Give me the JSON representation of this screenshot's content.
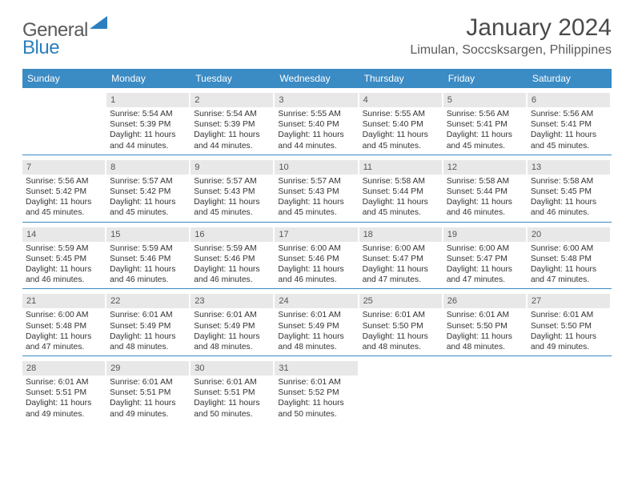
{
  "logo": {
    "part1": "General",
    "part2": "Blue"
  },
  "title": "January 2024",
  "location": "Limulan, Soccsksargen, Philippines",
  "weekdays": [
    "Sunday",
    "Monday",
    "Tuesday",
    "Wednesday",
    "Thursday",
    "Friday",
    "Saturday"
  ],
  "colors": {
    "header_bg": "#3b8bc4",
    "header_text": "#ffffff",
    "daynum_bg": "#e8e8e8",
    "body_text": "#333333",
    "logo_gray": "#5a5a5a",
    "logo_blue": "#2a7fbf"
  },
  "weeks": [
    [
      null,
      {
        "n": "1",
        "sr": "5:54 AM",
        "ss": "5:39 PM",
        "dl1": "11 hours",
        "dl2": "and 44 minutes."
      },
      {
        "n": "2",
        "sr": "5:54 AM",
        "ss": "5:39 PM",
        "dl1": "11 hours",
        "dl2": "and 44 minutes."
      },
      {
        "n": "3",
        "sr": "5:55 AM",
        "ss": "5:40 PM",
        "dl1": "11 hours",
        "dl2": "and 44 minutes."
      },
      {
        "n": "4",
        "sr": "5:55 AM",
        "ss": "5:40 PM",
        "dl1": "11 hours",
        "dl2": "and 45 minutes."
      },
      {
        "n": "5",
        "sr": "5:56 AM",
        "ss": "5:41 PM",
        "dl1": "11 hours",
        "dl2": "and 45 minutes."
      },
      {
        "n": "6",
        "sr": "5:56 AM",
        "ss": "5:41 PM",
        "dl1": "11 hours",
        "dl2": "and 45 minutes."
      }
    ],
    [
      {
        "n": "7",
        "sr": "5:56 AM",
        "ss": "5:42 PM",
        "dl1": "11 hours",
        "dl2": "and 45 minutes."
      },
      {
        "n": "8",
        "sr": "5:57 AM",
        "ss": "5:42 PM",
        "dl1": "11 hours",
        "dl2": "and 45 minutes."
      },
      {
        "n": "9",
        "sr": "5:57 AM",
        "ss": "5:43 PM",
        "dl1": "11 hours",
        "dl2": "and 45 minutes."
      },
      {
        "n": "10",
        "sr": "5:57 AM",
        "ss": "5:43 PM",
        "dl1": "11 hours",
        "dl2": "and 45 minutes."
      },
      {
        "n": "11",
        "sr": "5:58 AM",
        "ss": "5:44 PM",
        "dl1": "11 hours",
        "dl2": "and 45 minutes."
      },
      {
        "n": "12",
        "sr": "5:58 AM",
        "ss": "5:44 PM",
        "dl1": "11 hours",
        "dl2": "and 46 minutes."
      },
      {
        "n": "13",
        "sr": "5:58 AM",
        "ss": "5:45 PM",
        "dl1": "11 hours",
        "dl2": "and 46 minutes."
      }
    ],
    [
      {
        "n": "14",
        "sr": "5:59 AM",
        "ss": "5:45 PM",
        "dl1": "11 hours",
        "dl2": "and 46 minutes."
      },
      {
        "n": "15",
        "sr": "5:59 AM",
        "ss": "5:46 PM",
        "dl1": "11 hours",
        "dl2": "and 46 minutes."
      },
      {
        "n": "16",
        "sr": "5:59 AM",
        "ss": "5:46 PM",
        "dl1": "11 hours",
        "dl2": "and 46 minutes."
      },
      {
        "n": "17",
        "sr": "6:00 AM",
        "ss": "5:46 PM",
        "dl1": "11 hours",
        "dl2": "and 46 minutes."
      },
      {
        "n": "18",
        "sr": "6:00 AM",
        "ss": "5:47 PM",
        "dl1": "11 hours",
        "dl2": "and 47 minutes."
      },
      {
        "n": "19",
        "sr": "6:00 AM",
        "ss": "5:47 PM",
        "dl1": "11 hours",
        "dl2": "and 47 minutes."
      },
      {
        "n": "20",
        "sr": "6:00 AM",
        "ss": "5:48 PM",
        "dl1": "11 hours",
        "dl2": "and 47 minutes."
      }
    ],
    [
      {
        "n": "21",
        "sr": "6:00 AM",
        "ss": "5:48 PM",
        "dl1": "11 hours",
        "dl2": "and 47 minutes."
      },
      {
        "n": "22",
        "sr": "6:01 AM",
        "ss": "5:49 PM",
        "dl1": "11 hours",
        "dl2": "and 48 minutes."
      },
      {
        "n": "23",
        "sr": "6:01 AM",
        "ss": "5:49 PM",
        "dl1": "11 hours",
        "dl2": "and 48 minutes."
      },
      {
        "n": "24",
        "sr": "6:01 AM",
        "ss": "5:49 PM",
        "dl1": "11 hours",
        "dl2": "and 48 minutes."
      },
      {
        "n": "25",
        "sr": "6:01 AM",
        "ss": "5:50 PM",
        "dl1": "11 hours",
        "dl2": "and 48 minutes."
      },
      {
        "n": "26",
        "sr": "6:01 AM",
        "ss": "5:50 PM",
        "dl1": "11 hours",
        "dl2": "and 48 minutes."
      },
      {
        "n": "27",
        "sr": "6:01 AM",
        "ss": "5:50 PM",
        "dl1": "11 hours",
        "dl2": "and 49 minutes."
      }
    ],
    [
      {
        "n": "28",
        "sr": "6:01 AM",
        "ss": "5:51 PM",
        "dl1": "11 hours",
        "dl2": "and 49 minutes."
      },
      {
        "n": "29",
        "sr": "6:01 AM",
        "ss": "5:51 PM",
        "dl1": "11 hours",
        "dl2": "and 49 minutes."
      },
      {
        "n": "30",
        "sr": "6:01 AM",
        "ss": "5:51 PM",
        "dl1": "11 hours",
        "dl2": "and 50 minutes."
      },
      {
        "n": "31",
        "sr": "6:01 AM",
        "ss": "5:52 PM",
        "dl1": "11 hours",
        "dl2": "and 50 minutes."
      },
      null,
      null,
      null
    ]
  ],
  "labels": {
    "sunrise": "Sunrise: ",
    "sunset": "Sunset: ",
    "daylight": "Daylight: "
  }
}
